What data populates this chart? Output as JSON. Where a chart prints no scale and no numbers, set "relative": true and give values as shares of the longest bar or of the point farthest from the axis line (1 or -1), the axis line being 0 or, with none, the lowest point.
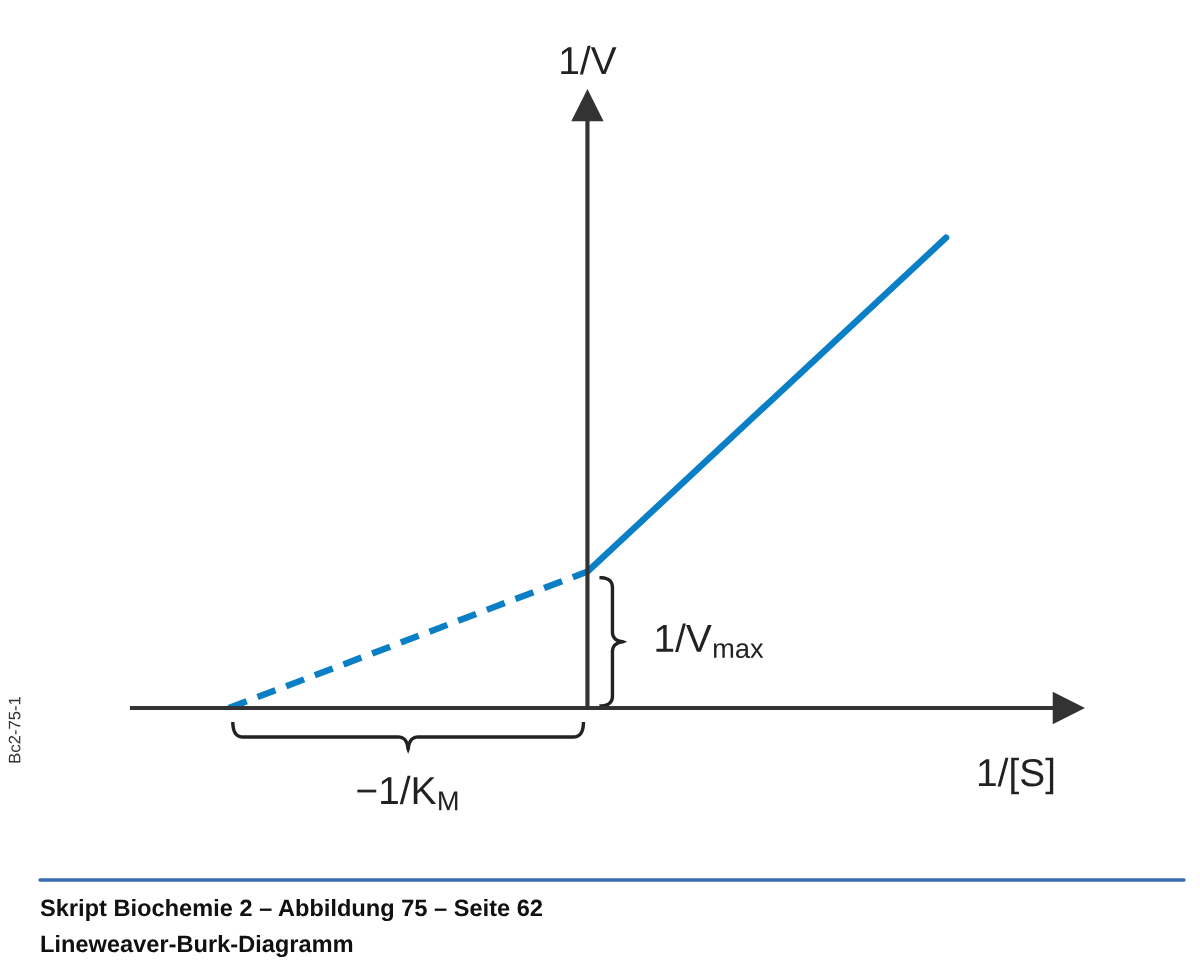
{
  "chart_data": {
    "type": "line",
    "relative": true,
    "categories": [
      null,
      null,
      null
    ],
    "xlabel": "1/[S]",
    "ylabel": "1/V",
    "series": [
      {
        "values": [
          0,
          0.29,
          null
        ],
        "color": "#0a7fc5",
        "line_style": "dashed"
      },
      {
        "values": [
          null,
          0.29,
          1
        ],
        "color": "#0a7fc5",
        "line_style": "solid"
      }
    ],
    "annotations": [
      "Bc2-75-1",
      "Skript Biochemie 2 – Abbildung 75 – Seite 62",
      "Lineweaver-Burk-Diagramm",
      "1/V$_{max}$",
      "−1/K$_{M}$"
    ]
  }
}
